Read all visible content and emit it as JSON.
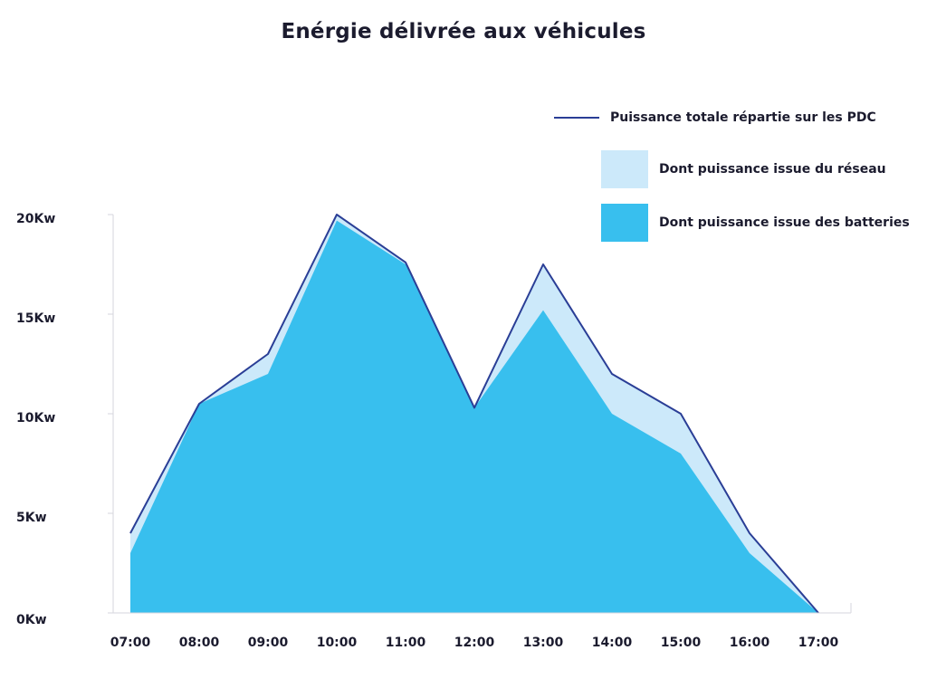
{
  "chart_data": {
    "type": "area",
    "title": "Enérgie délivrée aux véhicules",
    "x": [
      "07:00",
      "08:00",
      "09:00",
      "10:00",
      "11:00",
      "12:00",
      "13:00",
      "14:00",
      "15:00",
      "16:00",
      "17:00"
    ],
    "y_ticks": [
      "0Kw",
      "5Kw",
      "10Kw",
      "15Kw",
      "20Kw"
    ],
    "ylim": [
      0,
      20
    ],
    "series": [
      {
        "name": "Puissance totale répartie sur les PDC",
        "kind": "line",
        "color": "#2a3e96",
        "values": [
          4,
          10.5,
          13,
          20,
          17.6,
          10.3,
          17.5,
          12,
          10,
          4,
          0
        ]
      },
      {
        "name": "Dont puissance issue du réseau",
        "kind": "area",
        "color": "#cce9fa",
        "values": [
          1,
          0,
          1,
          0.3,
          0.1,
          0,
          2.3,
          2,
          2,
          1,
          0
        ]
      },
      {
        "name": "Dont puissance issue des batteries",
        "kind": "area",
        "color": "#38bfee",
        "values": [
          3,
          10.5,
          12,
          19.7,
          17.5,
          10.3,
          15.2,
          10,
          8,
          3,
          0
        ]
      }
    ],
    "legend_position": "top-right",
    "grid": false
  }
}
